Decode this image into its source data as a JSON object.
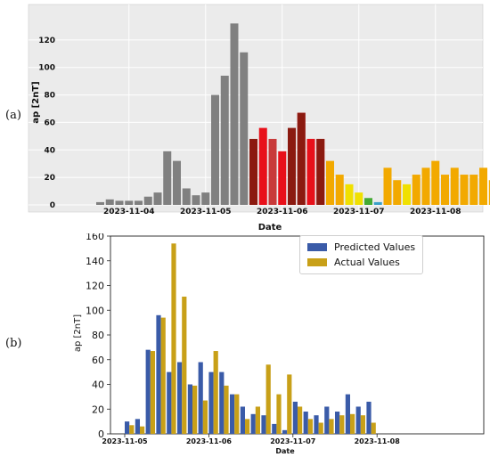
{
  "panels": {
    "a": "(a)",
    "b": "(b)"
  },
  "chart_data": [
    {
      "type": "bar",
      "xlabel": "Date",
      "ylabel": "ap [2nT]",
      "ylim": [
        0,
        140
      ],
      "yticks": [
        0,
        20,
        40,
        60,
        80,
        100,
        120
      ],
      "grid": true,
      "x_tick_labels": [
        "2023-11-04",
        "2023-11-05",
        "2023-11-06",
        "2023-11-07",
        "2023-11-08"
      ],
      "x_tick_bar_index": [
        3,
        11,
        19,
        27,
        35
      ],
      "values": [
        2,
        4,
        3,
        3,
        3,
        6,
        9,
        39,
        32,
        12,
        7,
        9,
        80,
        94,
        132,
        111,
        48,
        56,
        48,
        39,
        56,
        67,
        48,
        48,
        32,
        22,
        15,
        9,
        5,
        2,
        27,
        18,
        15,
        22,
        27,
        32,
        22,
        27,
        22,
        22,
        27,
        18
      ],
      "colors": [
        "#808080",
        "#808080",
        "#808080",
        "#808080",
        "#808080",
        "#808080",
        "#808080",
        "#808080",
        "#808080",
        "#808080",
        "#808080",
        "#808080",
        "#808080",
        "#808080",
        "#808080",
        "#808080",
        "#8b1a10",
        "#e8101a",
        "#c83a3a",
        "#e8101a",
        "#8b1a10",
        "#8b1a10",
        "#e8101a",
        "#8b1a10",
        "#f2a900",
        "#f2a900",
        "#f0e000",
        "#f0e000",
        "#44aa33",
        "#3aa0c8",
        "#f2a900",
        "#f2a900",
        "#f0e000",
        "#f2a900",
        "#f2a900",
        "#f2a900",
        "#f2a900",
        "#f2a900",
        "#f2a900",
        "#f2a900",
        "#f2a900",
        "#f2a900"
      ],
      "overlay": [
        null,
        null,
        null,
        null,
        null,
        null,
        null,
        null,
        null,
        null,
        null,
        null,
        null,
        null,
        null,
        null,
        null,
        null,
        null,
        null,
        null,
        67,
        48,
        48
      ]
    },
    {
      "type": "bar",
      "xlabel": "Date",
      "ylabel": "ap [2nT]",
      "ylim": [
        0,
        160
      ],
      "yticks": [
        0,
        20,
        40,
        60,
        80,
        100,
        120,
        140,
        160
      ],
      "grid": false,
      "legend_position": "top-right",
      "x_tick_labels": [
        "2023-11-05",
        "2023-11-06",
        "2023-11-07",
        "2023-11-08"
      ],
      "x_tick_group_index": [
        0,
        8,
        16,
        24
      ],
      "series": [
        {
          "name": "Predicted Values",
          "color": "#3a5ba8",
          "values": [
            10,
            12,
            68,
            96,
            50,
            58,
            40,
            58,
            50,
            50,
            32,
            22,
            16,
            15,
            8,
            3,
            26,
            18,
            15,
            22,
            18,
            32,
            22,
            26
          ]
        },
        {
          "name": "Actual Values",
          "color": "#c8a018",
          "values": [
            7,
            6,
            67,
            94,
            154,
            111,
            39,
            27,
            67,
            39,
            32,
            12,
            22,
            56,
            32,
            48,
            22,
            12,
            9,
            12,
            15,
            16,
            15,
            9
          ]
        }
      ]
    }
  ]
}
